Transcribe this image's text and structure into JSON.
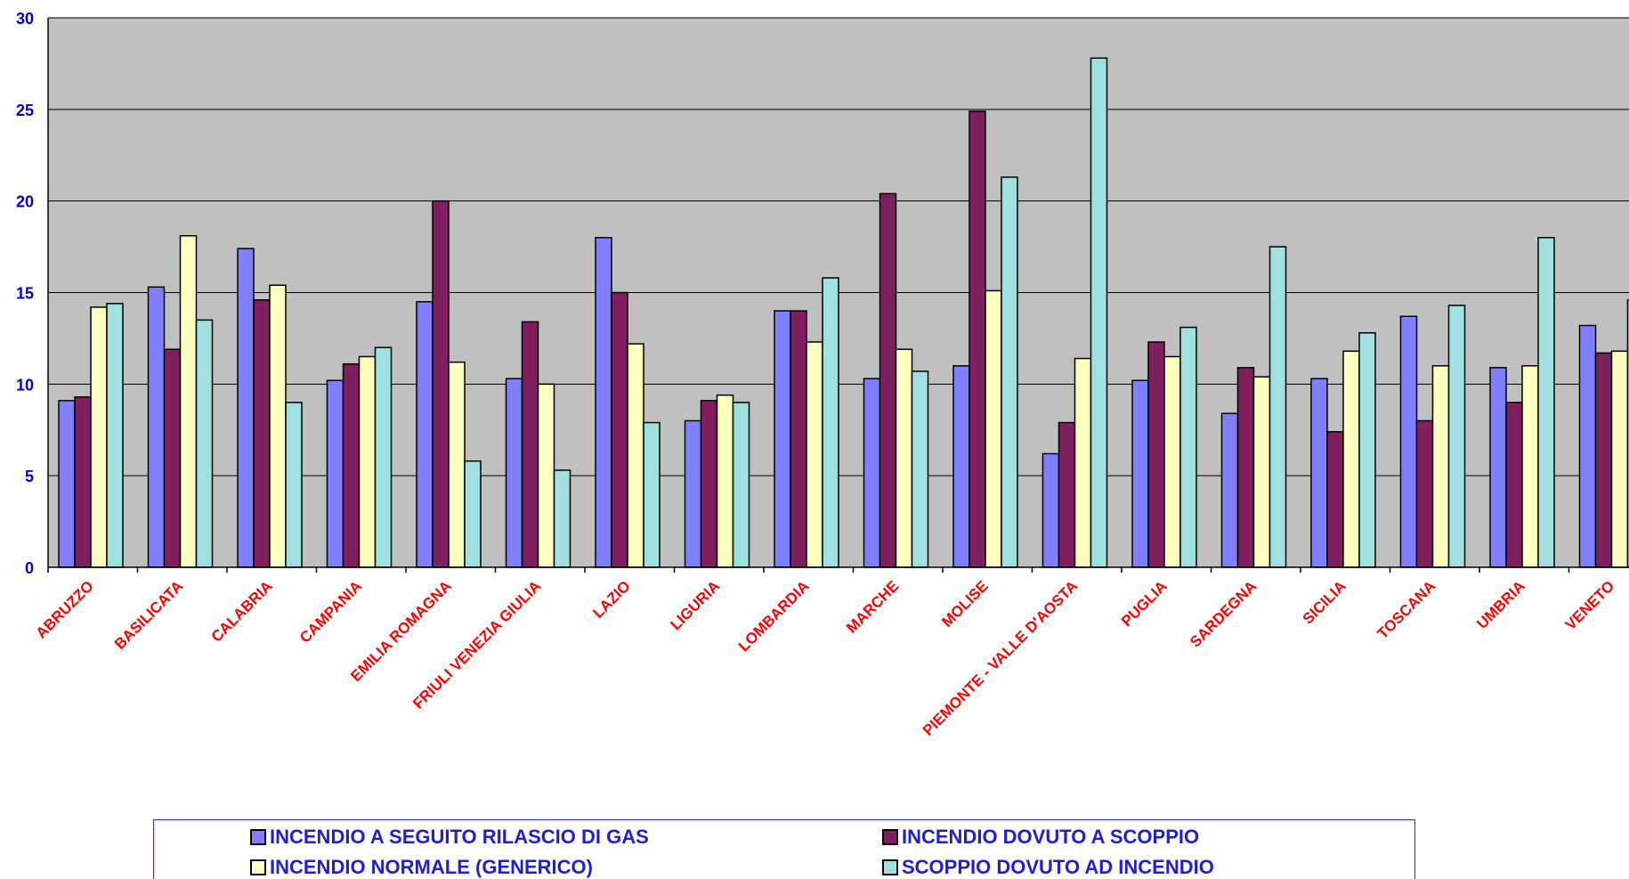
{
  "chart_data": {
    "type": "bar",
    "title": "",
    "xlabel": "",
    "ylabel": "",
    "ylim": [
      0,
      30
    ],
    "yticks": [
      "0",
      "5",
      "10",
      "15",
      "20",
      "25",
      "30"
    ],
    "grid": true,
    "legend_position": "bottom",
    "categories": [
      "ABRUZZO",
      "BASILICATA",
      "CALABRIA",
      "CAMPANIA",
      "EMILIA ROMAGNA",
      "FRIULI VENEZIA GIULIA",
      "LAZIO",
      "LIGURIA",
      "LOMBARDIA",
      "MARCHE",
      "MOLISE",
      "PIEMONTE - VALLE D'AOSTA",
      "PUGLIA",
      "SARDEGNA",
      "SICILIA",
      "TOSCANA",
      "UMBRIA",
      "VENETO"
    ],
    "series": [
      {
        "name": "INCENDIO A SEGUITO RILASCIO DI GAS",
        "color": "#8080ff",
        "values": [
          9.1,
          15.3,
          17.4,
          10.2,
          14.5,
          10.3,
          18.0,
          8.0,
          14.0,
          10.3,
          11.0,
          6.2,
          10.2,
          8.4,
          10.3,
          13.7,
          10.9,
          13.2
        ]
      },
      {
        "name": "INCENDIO DOVUTO A SCOPPIO",
        "color": "#7f1f5f",
        "values": [
          9.3,
          11.9,
          14.6,
          11.1,
          20.0,
          13.4,
          15.0,
          9.1,
          14.0,
          20.4,
          24.9,
          7.9,
          12.3,
          10.9,
          7.4,
          8.0,
          9.0,
          11.7
        ]
      },
      {
        "name": "INCENDIO NORMALE (GENERICO)",
        "color": "#ffffc0",
        "values": [
          14.2,
          18.1,
          15.4,
          11.5,
          11.2,
          10.0,
          12.2,
          9.4,
          12.3,
          11.9,
          15.1,
          11.4,
          11.5,
          10.4,
          11.8,
          11.0,
          11.0,
          11.8
        ]
      },
      {
        "name": "SCOPPIO DOVUTO AD INCENDIO",
        "color": "#a0e0e0",
        "values": [
          14.4,
          13.5,
          9.0,
          12.0,
          5.8,
          5.3,
          7.9,
          9.0,
          15.8,
          10.7,
          21.3,
          27.8,
          13.1,
          17.5,
          12.8,
          14.3,
          18.0,
          14.6
        ]
      }
    ],
    "colors": {
      "plot_background": "#c0c0c0",
      "category_label": "#ff0000",
      "axis_label": "#0000cc",
      "legend_text": "#2020cc"
    }
  }
}
